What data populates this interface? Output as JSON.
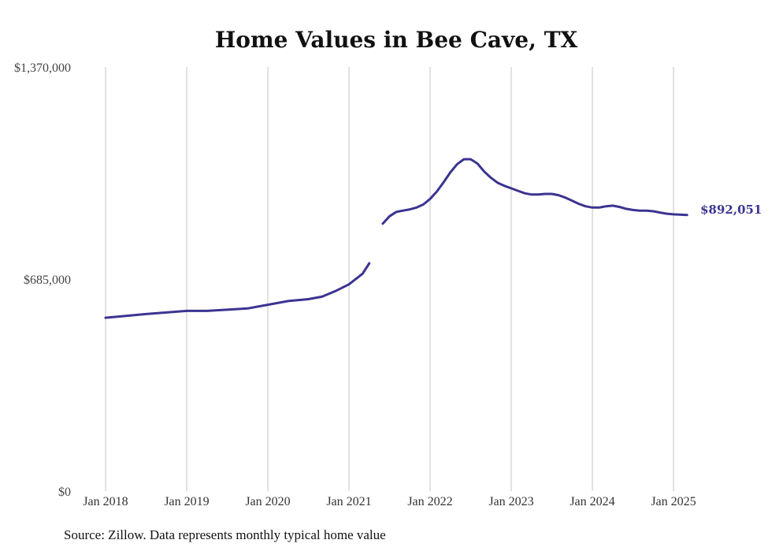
{
  "chart_data": {
    "type": "line",
    "title": "Home Values in Bee Cave, TX",
    "xlabel": "",
    "ylabel": "",
    "ylim": [
      0,
      1370000
    ],
    "yticks": [
      {
        "value": 0,
        "label": "$0"
      },
      {
        "value": 685000,
        "label": "$685,000"
      },
      {
        "value": 1370000,
        "label": "$1,370,000"
      }
    ],
    "xticks": [
      {
        "value": "2018-01",
        "label": "Jan 2018"
      },
      {
        "value": "2019-01",
        "label": "Jan 2019"
      },
      {
        "value": "2020-01",
        "label": "Jan 2020"
      },
      {
        "value": "2021-01",
        "label": "Jan 2021"
      },
      {
        "value": "2022-01",
        "label": "Jan 2022"
      },
      {
        "value": "2023-01",
        "label": "Jan 2023"
      },
      {
        "value": "2024-01",
        "label": "Jan 2024"
      },
      {
        "value": "2025-01",
        "label": "Jan 2025"
      }
    ],
    "grid": "vertical",
    "line_color": "#3b3491",
    "end_label": "$892,051",
    "series": [
      {
        "segments": [
          [
            [
              "2018-01",
              560000
            ],
            [
              "2018-04",
              566000
            ],
            [
              "2018-07",
              572000
            ],
            [
              "2018-10",
              577000
            ],
            [
              "2019-01",
              582000
            ],
            [
              "2019-04",
              582000
            ],
            [
              "2019-07",
              586000
            ],
            [
              "2019-10",
              590000
            ],
            [
              "2020-01",
              602000
            ],
            [
              "2020-04",
              614000
            ],
            [
              "2020-07",
              620000
            ],
            [
              "2020-09",
              628000
            ],
            [
              "2020-11",
              646000
            ],
            [
              "2021-01",
              668000
            ],
            [
              "2021-03",
              702000
            ],
            [
              "2021-04",
              736000
            ]
          ],
          [
            [
              "2021-06",
              864000
            ],
            [
              "2021-07",
              888000
            ],
            [
              "2021-08",
              902000
            ],
            [
              "2021-09",
              906000
            ],
            [
              "2021-10",
              910000
            ],
            [
              "2021-11",
              916000
            ],
            [
              "2021-12",
              926000
            ],
            [
              "2022-01",
              944000
            ],
            [
              "2022-02",
              968000
            ],
            [
              "2022-03",
              998000
            ],
            [
              "2022-04",
              1030000
            ],
            [
              "2022-05",
              1056000
            ],
            [
              "2022-06",
              1072000
            ],
            [
              "2022-07",
              1072000
            ],
            [
              "2022-08",
              1058000
            ],
            [
              "2022-09",
              1032000
            ],
            [
              "2022-10",
              1012000
            ],
            [
              "2022-11",
              996000
            ],
            [
              "2022-12",
              986000
            ],
            [
              "2023-01",
              978000
            ],
            [
              "2023-02",
              970000
            ],
            [
              "2023-03",
              962000
            ],
            [
              "2023-04",
              958000
            ],
            [
              "2023-05",
              958000
            ],
            [
              "2023-06",
              960000
            ],
            [
              "2023-07",
              960000
            ],
            [
              "2023-08",
              956000
            ],
            [
              "2023-09",
              948000
            ],
            [
              "2023-10",
              938000
            ],
            [
              "2023-11",
              928000
            ],
            [
              "2023-12",
              920000
            ],
            [
              "2024-01",
              916000
            ],
            [
              "2024-02",
              916000
            ],
            [
              "2024-03",
              920000
            ],
            [
              "2024-04",
              922000
            ],
            [
              "2024-05",
              918000
            ],
            [
              "2024-06",
              912000
            ],
            [
              "2024-07",
              908000
            ],
            [
              "2024-08",
              906000
            ],
            [
              "2024-09",
              906000
            ],
            [
              "2024-10",
              904000
            ],
            [
              "2024-11",
              900000
            ],
            [
              "2024-12",
              896000
            ],
            [
              "2025-01",
              894000
            ],
            [
              "2025-03",
              892051
            ]
          ]
        ]
      }
    ]
  },
  "footer": {
    "source": "Source: Zillow. Data represents monthly typical home value"
  }
}
